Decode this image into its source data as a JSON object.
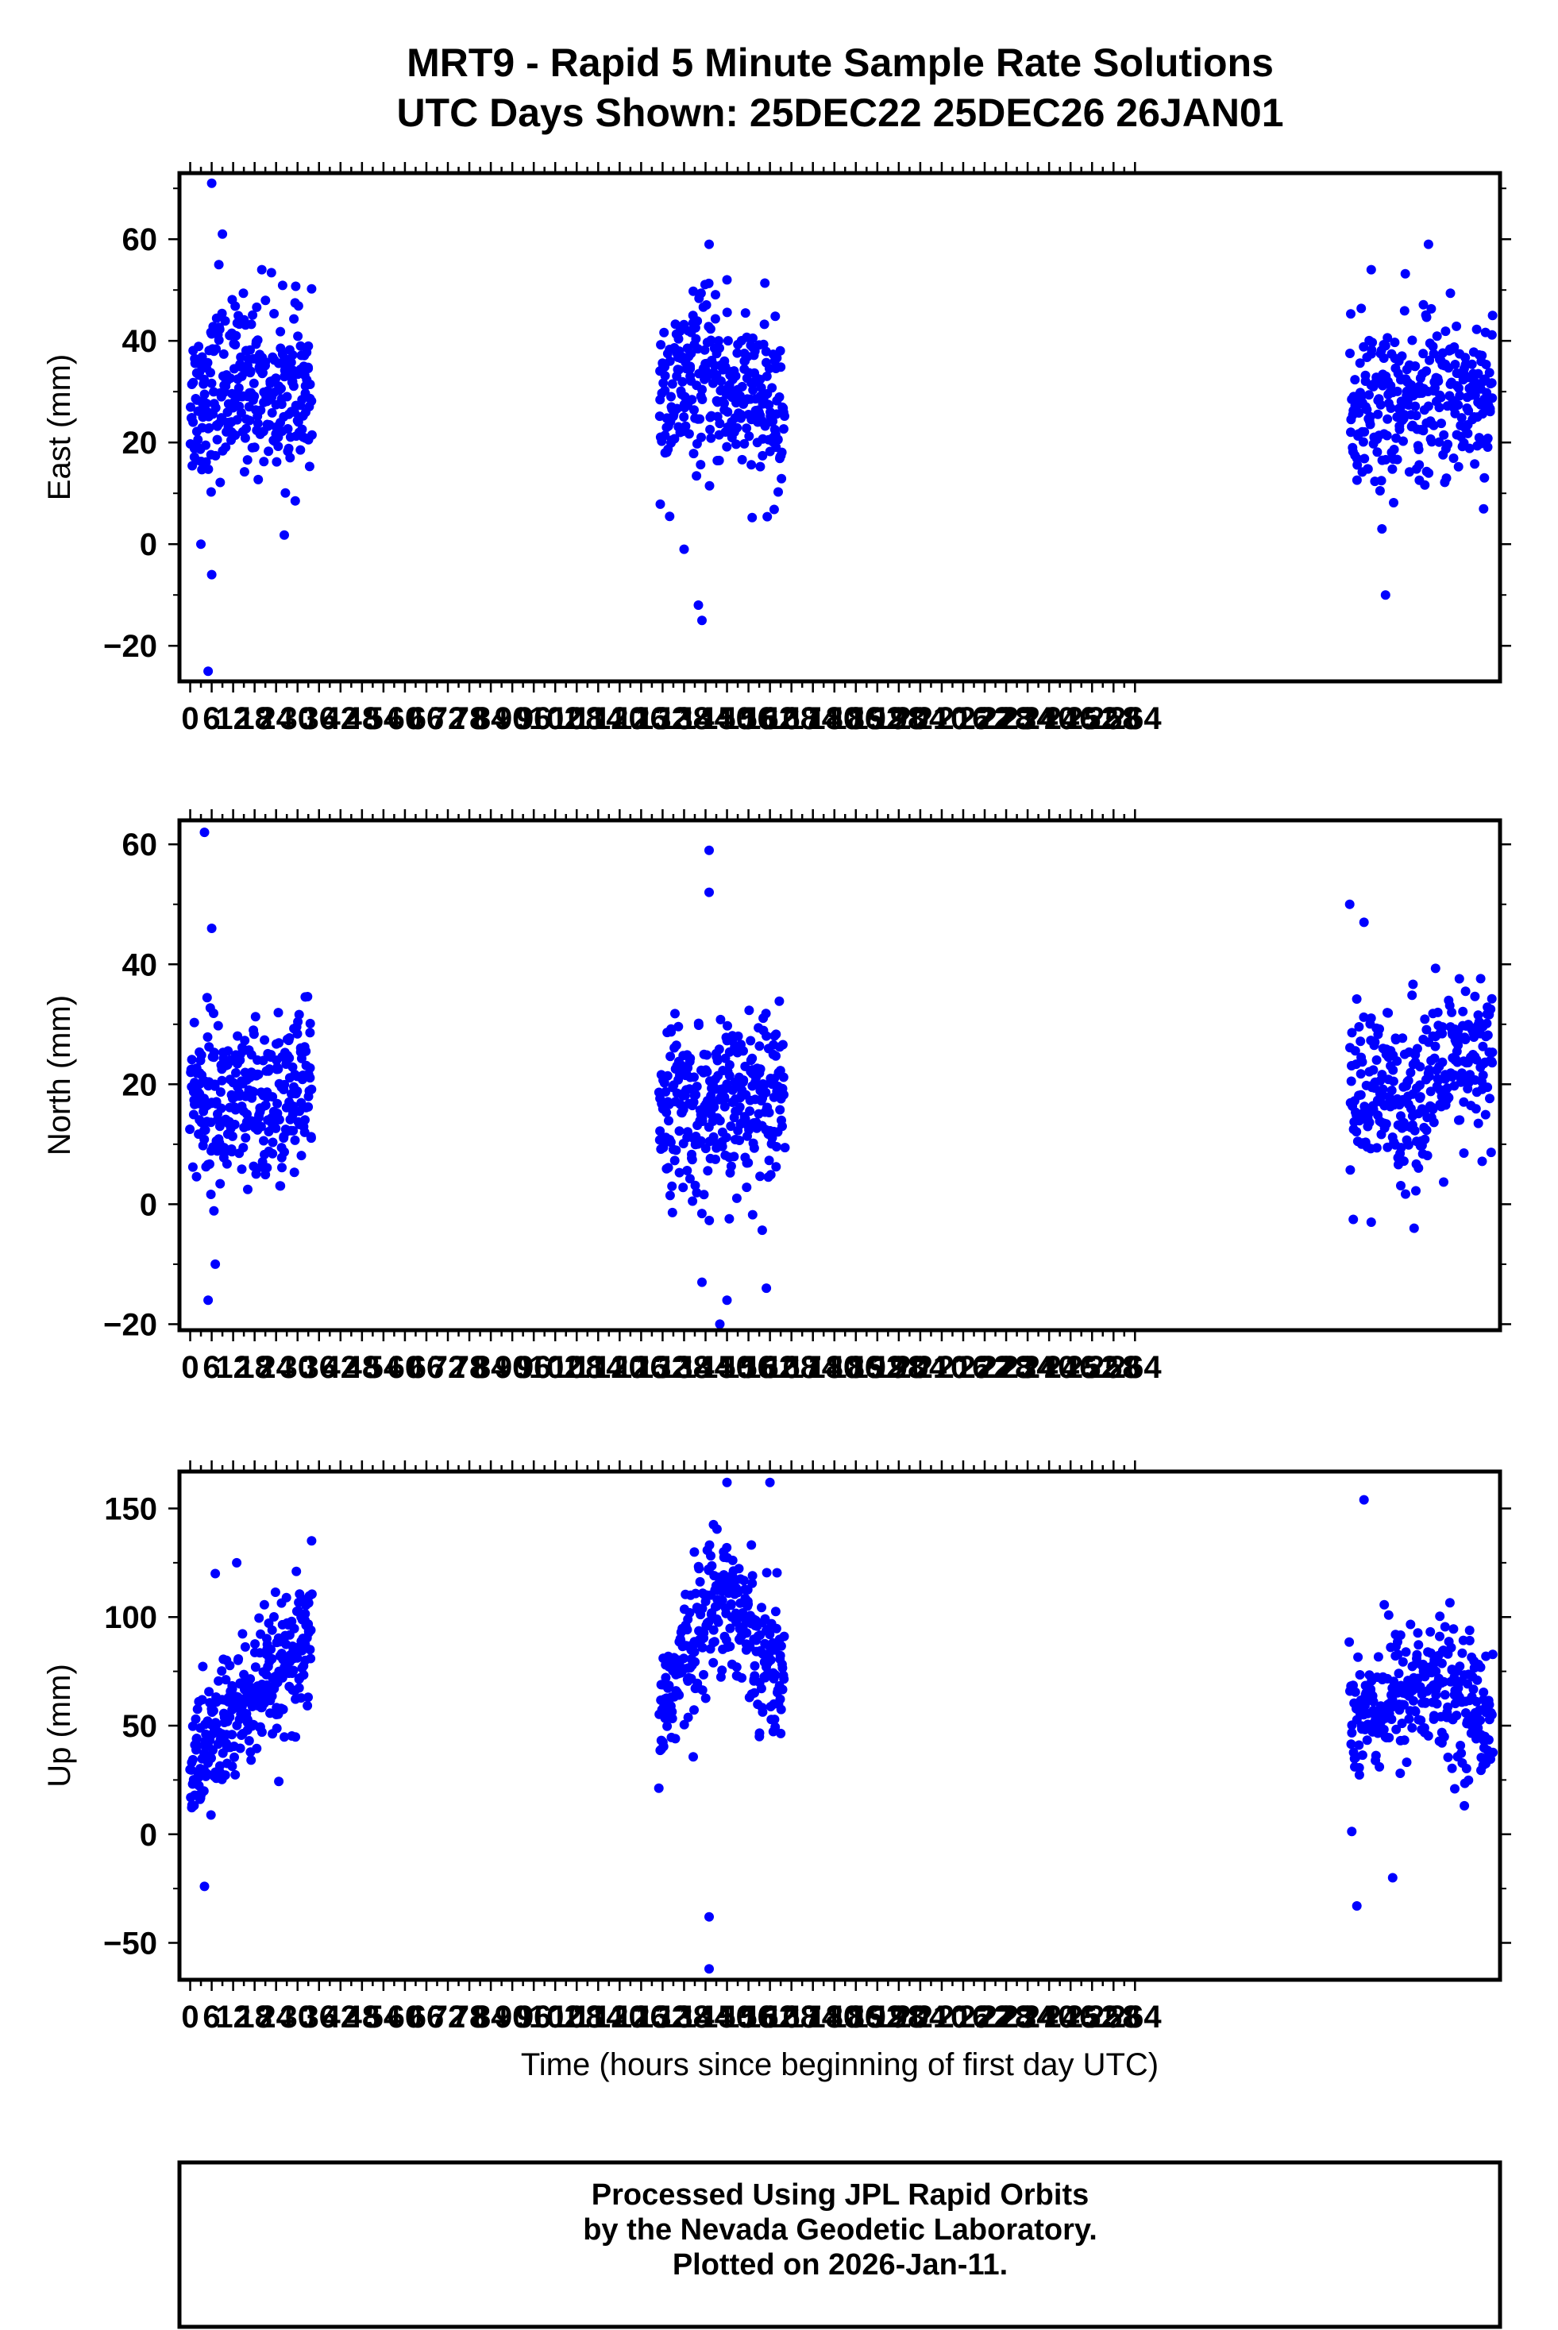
{
  "title": {
    "line1": "MRT9 - Rapid 5 Minute Sample Rate Solutions",
    "line2": "UTC Days Shown:  25DEC22 25DEC26 26JAN01"
  },
  "footer": {
    "line1": "Processed Using JPL Rapid Orbits",
    "line2": "by the Nevada Geodetic Laboratory.",
    "line3": "Plotted on 2026-Jan-11."
  },
  "colors": {
    "points": "#0000ff",
    "axes": "#000000",
    "background": "#ffffff"
  },
  "chart_data": [
    {
      "type": "scatter",
      "ylabel": "East (mm)",
      "xlabel": "",
      "xlim": [
        -3,
        366
      ],
      "ylim": [
        -27,
        73
      ],
      "xticks": [
        0,
        6,
        12,
        18,
        24,
        30,
        36,
        42,
        48,
        54,
        60,
        66,
        72,
        78,
        84,
        90,
        96,
        102,
        108,
        114,
        120,
        126,
        132,
        138,
        144,
        150,
        156,
        162,
        168,
        174,
        180,
        186,
        192,
        198,
        204,
        210,
        216,
        222,
        228,
        234,
        240,
        246,
        252,
        258,
        264
      ],
      "yticks": [
        -20,
        0,
        20,
        40,
        60
      ],
      "windows": [
        [
          0,
          34
        ],
        [
          131,
          166
        ],
        [
          324,
          364
        ]
      ],
      "center_trend": [
        [
          0,
          28
        ],
        [
          15,
          32
        ],
        [
          34,
          28
        ],
        [
          131,
          27
        ],
        [
          142,
          33
        ],
        [
          166,
          25
        ],
        [
          324,
          26
        ],
        [
          340,
          28
        ],
        [
          364,
          30
        ]
      ],
      "scatter_sd": 8,
      "points_per_window": 300,
      "outliers": [
        [
          3,
          0
        ],
        [
          6,
          -6
        ],
        [
          5,
          -25
        ],
        [
          6,
          71
        ],
        [
          9,
          61
        ],
        [
          8,
          55
        ],
        [
          20,
          54
        ],
        [
          138,
          -1
        ],
        [
          142,
          -12
        ],
        [
          143,
          -15
        ],
        [
          145,
          59
        ],
        [
          150,
          52
        ],
        [
          334,
          -10
        ],
        [
          333,
          3
        ],
        [
          346,
          59
        ],
        [
          330,
          54
        ]
      ]
    },
    {
      "type": "scatter",
      "ylabel": "North (mm)",
      "xlabel": "",
      "xlim": [
        -3,
        366
      ],
      "ylim": [
        -21,
        64
      ],
      "xticks": [
        0,
        6,
        12,
        18,
        24,
        30,
        36,
        42,
        48,
        54,
        60,
        66,
        72,
        78,
        84,
        90,
        96,
        102,
        108,
        114,
        120,
        126,
        132,
        138,
        144,
        150,
        156,
        162,
        168,
        174,
        180,
        186,
        192,
        198,
        204,
        210,
        216,
        222,
        228,
        234,
        240,
        246,
        252,
        258,
        264
      ],
      "yticks": [
        -20,
        0,
        20,
        40,
        60
      ],
      "windows": [
        [
          0,
          34
        ],
        [
          131,
          166
        ],
        [
          324,
          364
        ]
      ],
      "center_trend": [
        [
          0,
          19
        ],
        [
          15,
          15
        ],
        [
          34,
          19
        ],
        [
          131,
          18
        ],
        [
          145,
          14
        ],
        [
          166,
          21
        ],
        [
          324,
          18
        ],
        [
          340,
          18
        ],
        [
          364,
          25
        ]
      ],
      "scatter_sd": 7,
      "points_per_window": 300,
      "outliers": [
        [
          4,
          62
        ],
        [
          5,
          -16
        ],
        [
          7,
          -10
        ],
        [
          6,
          46
        ],
        [
          145,
          59
        ],
        [
          145,
          52
        ],
        [
          148,
          -20
        ],
        [
          150,
          -16
        ],
        [
          143,
          -13
        ],
        [
          161,
          -14
        ],
        [
          324,
          50
        ],
        [
          328,
          47
        ],
        [
          342,
          -4
        ],
        [
          330,
          -3
        ]
      ]
    },
    {
      "type": "scatter",
      "ylabel": "Up (mm)",
      "xlabel": "Time (hours since beginning of first day UTC)",
      "xlim": [
        -3,
        366
      ],
      "ylim": [
        -67,
        167
      ],
      "xticks": [
        0,
        6,
        12,
        18,
        24,
        30,
        36,
        42,
        48,
        54,
        60,
        66,
        72,
        78,
        84,
        90,
        96,
        102,
        108,
        114,
        120,
        126,
        132,
        138,
        144,
        150,
        156,
        162,
        168,
        174,
        180,
        186,
        192,
        198,
        204,
        210,
        216,
        222,
        228,
        234,
        240,
        246,
        252,
        258,
        264
      ],
      "yticks": [
        -50,
        0,
        50,
        100,
        150
      ],
      "windows": [
        [
          0,
          34
        ],
        [
          131,
          166
        ],
        [
          324,
          364
        ]
      ],
      "center_trend": [
        [
          0,
          30
        ],
        [
          12,
          55
        ],
        [
          34,
          85
        ],
        [
          131,
          55
        ],
        [
          148,
          115
        ],
        [
          166,
          70
        ],
        [
          324,
          55
        ],
        [
          345,
          70
        ],
        [
          364,
          55
        ]
      ],
      "scatter_sd": 16,
      "points_per_window": 300,
      "outliers": [
        [
          4,
          -24
        ],
        [
          7,
          120
        ],
        [
          13,
          125
        ],
        [
          145,
          -38
        ],
        [
          145,
          -62
        ],
        [
          150,
          162
        ],
        [
          162,
          162
        ],
        [
          326,
          -33
        ],
        [
          328,
          154
        ],
        [
          336,
          -20
        ]
      ]
    }
  ]
}
